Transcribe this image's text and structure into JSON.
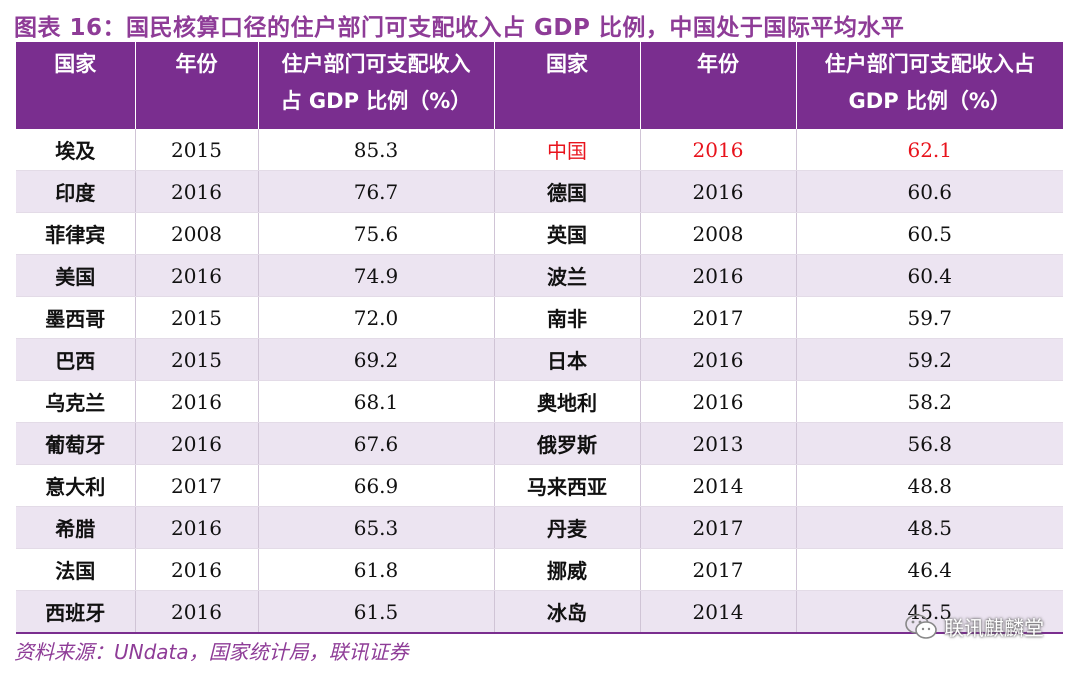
{
  "title": "图表 16：国民核算口径的住户部门可支配收入占 GDP 比例，中国处于国际平均水平",
  "headers": {
    "country": "国家",
    "year": "年份",
    "ratio_line1": "住户部门可支配收入",
    "ratio_line2": "占 GDP 比例（%）",
    "ratio2_line1": "住户部门可支配收入占",
    "ratio2_line2": "GDP 比例（%）"
  },
  "rows": [
    {
      "c1": "埃及",
      "y1": "2015",
      "v1": "85.3",
      "c2": "中国",
      "y2": "2016",
      "v2": "62.1"
    },
    {
      "c1": "印度",
      "y1": "2016",
      "v1": "76.7",
      "c2": "德国",
      "y2": "2016",
      "v2": "60.6"
    },
    {
      "c1": "菲律宾",
      "y1": "2008",
      "v1": "75.6",
      "c2": "英国",
      "y2": "2008",
      "v2": "60.5"
    },
    {
      "c1": "美国",
      "y1": "2016",
      "v1": "74.9",
      "c2": "波兰",
      "y2": "2016",
      "v2": "60.4"
    },
    {
      "c1": "墨西哥",
      "y1": "2015",
      "v1": "72.0",
      "c2": "南非",
      "y2": "2017",
      "v2": "59.7"
    },
    {
      "c1": "巴西",
      "y1": "2015",
      "v1": "69.2",
      "c2": "日本",
      "y2": "2016",
      "v2": "59.2"
    },
    {
      "c1": "乌克兰",
      "y1": "2016",
      "v1": "68.1",
      "c2": "奥地利",
      "y2": "2016",
      "v2": "58.2"
    },
    {
      "c1": "葡萄牙",
      "y1": "2016",
      "v1": "67.6",
      "c2": "俄罗斯",
      "y2": "2013",
      "v2": "56.8"
    },
    {
      "c1": "意大利",
      "y1": "2017",
      "v1": "66.9",
      "c2": "马来西亚",
      "y2": "2014",
      "v2": "48.8"
    },
    {
      "c1": "希腊",
      "y1": "2016",
      "v1": "65.3",
      "c2": "丹麦",
      "y2": "2017",
      "v2": "48.5"
    },
    {
      "c1": "法国",
      "y1": "2016",
      "v1": "61.8",
      "c2": "挪威",
      "y2": "2017",
      "v2": "46.4"
    },
    {
      "c1": "西班牙",
      "y1": "2016",
      "v1": "61.5",
      "c2": "冰岛",
      "y2": "2014",
      "v2": "45.5"
    }
  ],
  "highlight_color": "#e8131c",
  "source": "资料来源：UNdata，国家统计局，联讯证券",
  "watermark": {
    "icon": "wechat-icon",
    "text": "联讯麒麟堂"
  }
}
